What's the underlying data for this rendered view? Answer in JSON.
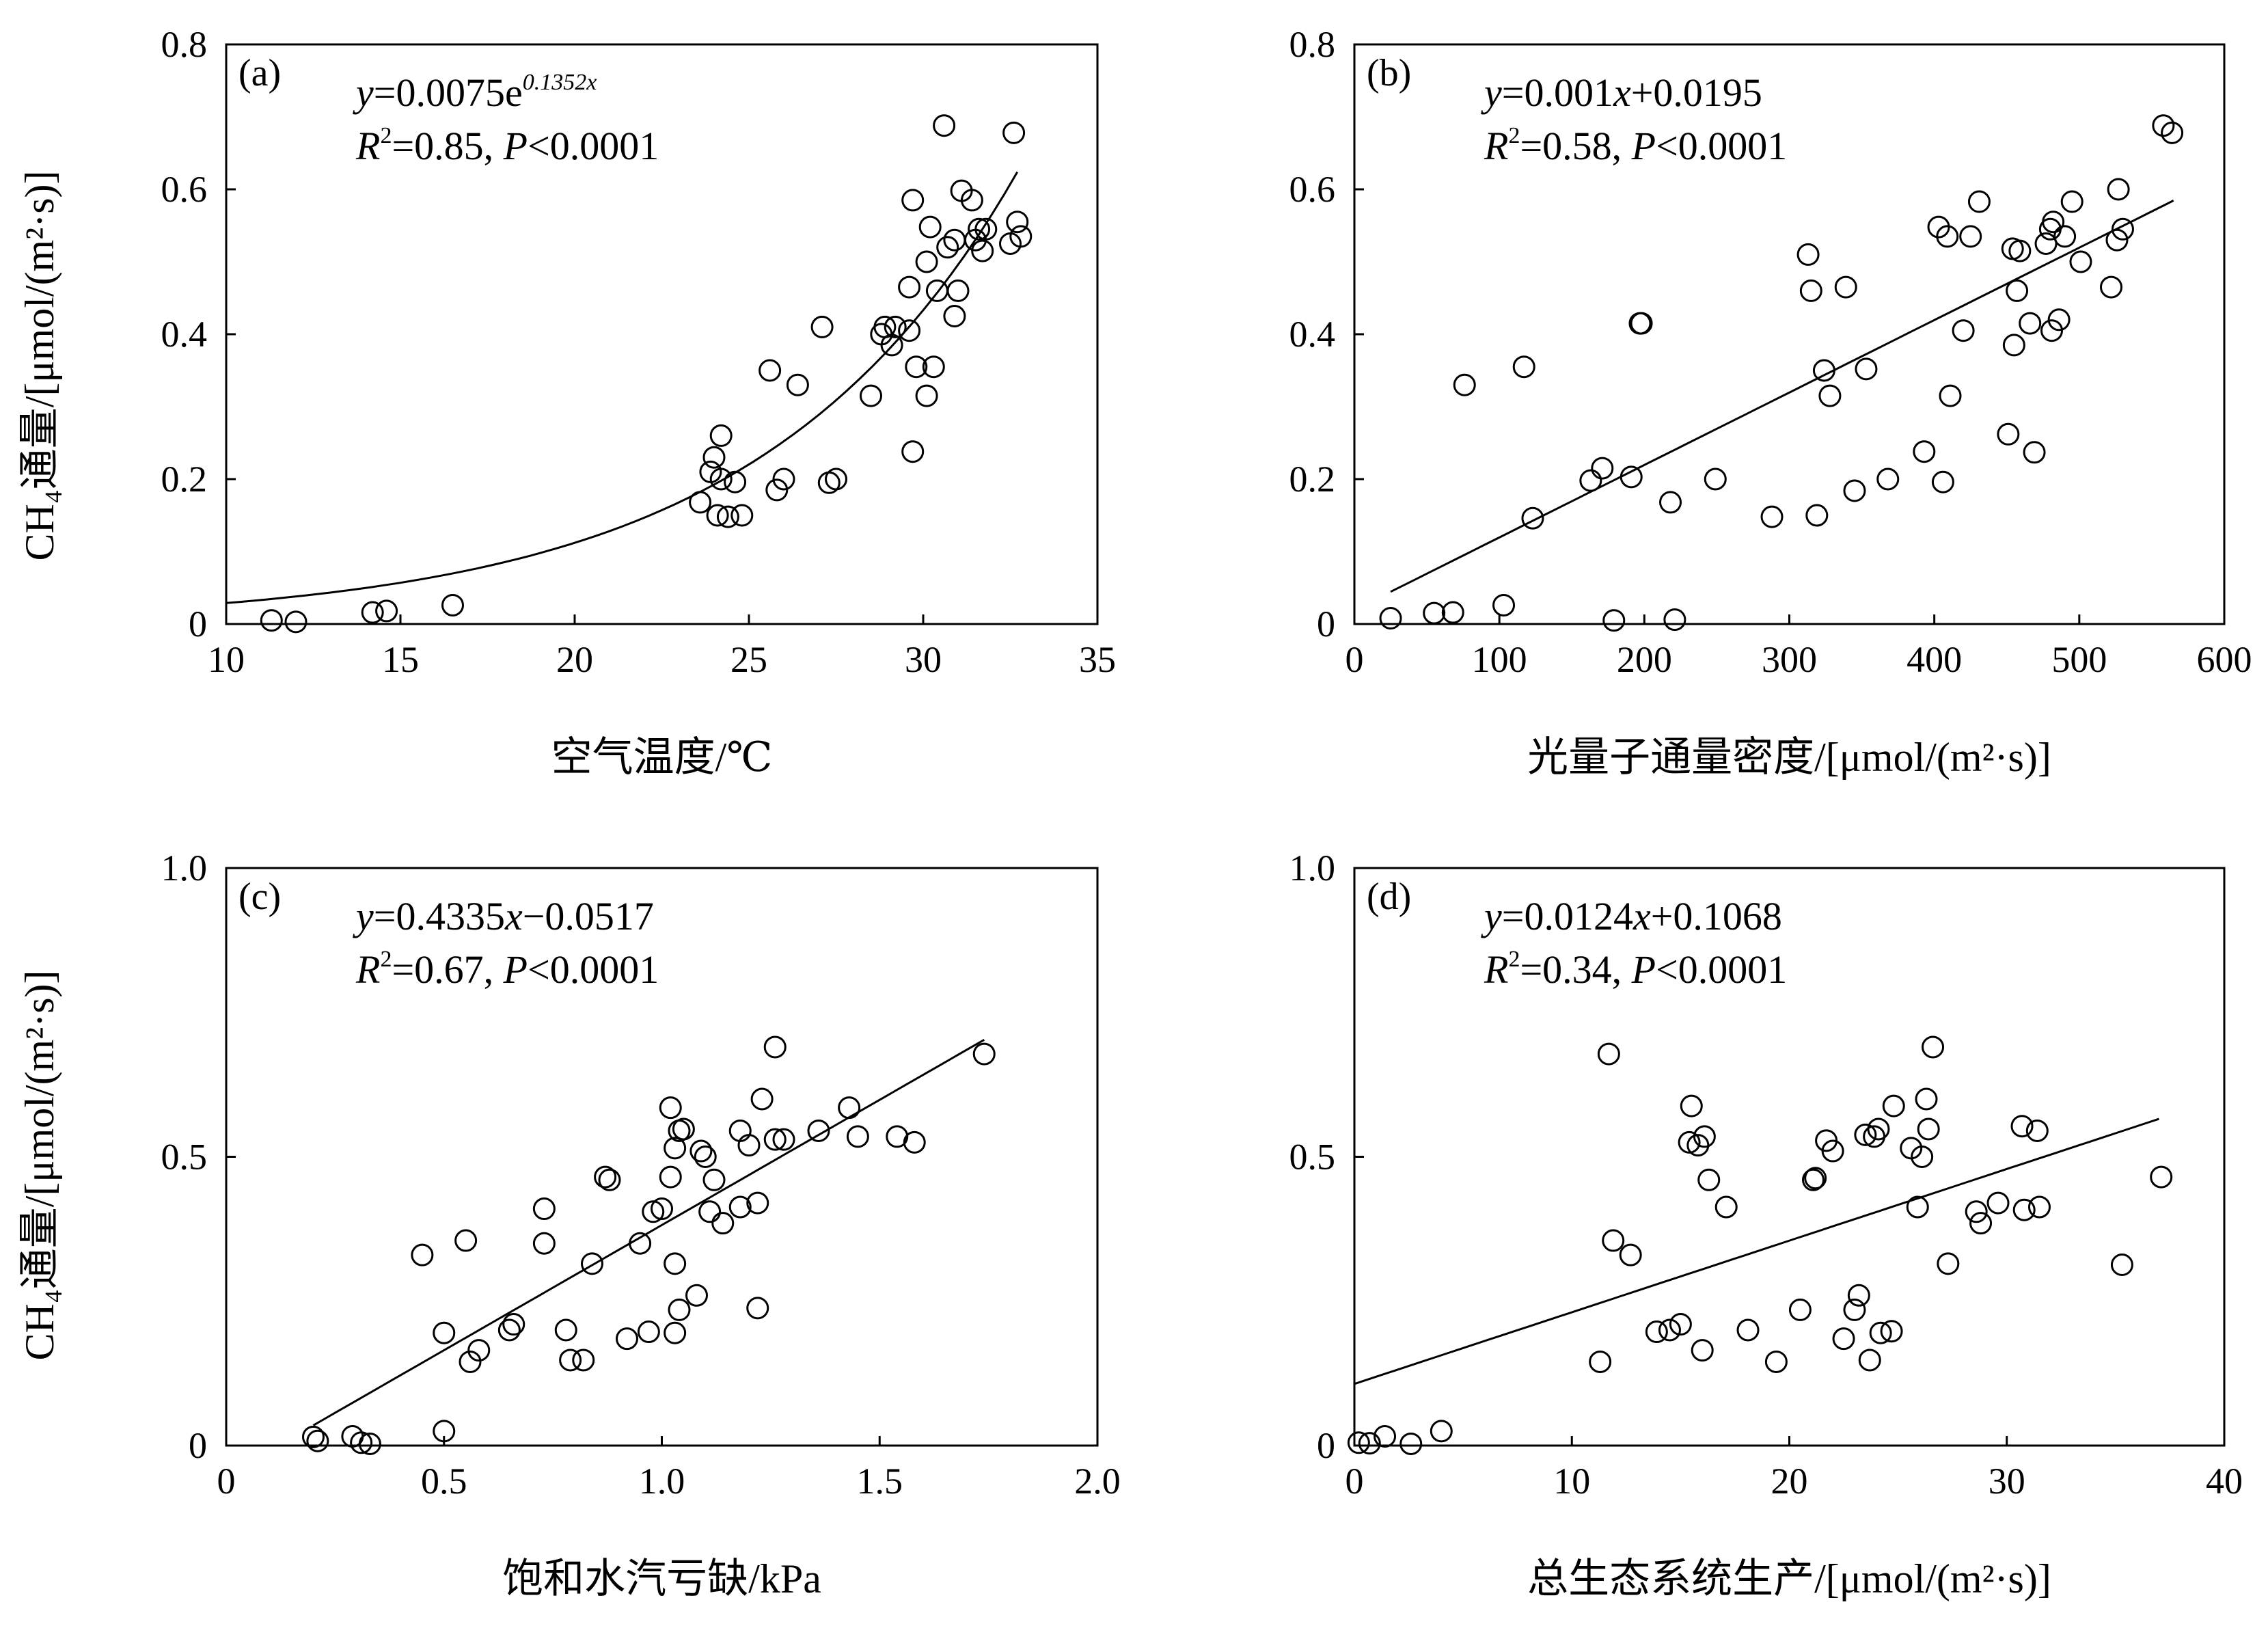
{
  "chart_data": [
    {
      "type": "scatter",
      "panel": "(a)",
      "equation": {
        "lhs": "y",
        "text": "=0.0075e",
        "exponent": "0.1352x"
      },
      "stats": {
        "r2_label": "R",
        "r2_value": "=0.85, ",
        "p_label": "P",
        "p_value": "<0.0001"
      },
      "xlabel": "空气温度/℃",
      "ylabel": "CH₄通量/[μmol/(m²·s)]",
      "xlim": [
        10,
        35
      ],
      "ylim": [
        0,
        0.8
      ],
      "xticks": [
        10,
        15,
        20,
        25,
        30,
        35
      ],
      "yticks": [
        0,
        0.2,
        0.4,
        0.6,
        0.8
      ],
      "xtick_labels": [
        "10",
        "15",
        "20",
        "25",
        "30",
        "35"
      ],
      "ytick_labels": [
        "0",
        "0.2",
        "0.4",
        "0.6",
        "0.8"
      ],
      "fit": {
        "kind": "exp",
        "a": 0.0075,
        "b": 0.1352,
        "x_range": [
          10,
          32.7
        ]
      },
      "points": [
        [
          11.3,
          0.005
        ],
        [
          12.0,
          0.003
        ],
        [
          14.2,
          0.016
        ],
        [
          14.6,
          0.018
        ],
        [
          16.5,
          0.026
        ],
        [
          23.6,
          0.168
        ],
        [
          23.9,
          0.21
        ],
        [
          24.0,
          0.23
        ],
        [
          24.1,
          0.15
        ],
        [
          24.2,
          0.2
        ],
        [
          24.2,
          0.26
        ],
        [
          24.4,
          0.148
        ],
        [
          24.6,
          0.196
        ],
        [
          24.8,
          0.15
        ],
        [
          25.6,
          0.35
        ],
        [
          25.8,
          0.185
        ],
        [
          26.0,
          0.2
        ],
        [
          26.4,
          0.33
        ],
        [
          27.1,
          0.41
        ],
        [
          27.3,
          0.195
        ],
        [
          27.5,
          0.2
        ],
        [
          28.5,
          0.315
        ],
        [
          28.8,
          0.4
        ],
        [
          28.9,
          0.41
        ],
        [
          29.1,
          0.385
        ],
        [
          29.2,
          0.41
        ],
        [
          29.6,
          0.465
        ],
        [
          29.6,
          0.405
        ],
        [
          29.7,
          0.238
        ],
        [
          29.7,
          0.585
        ],
        [
          29.8,
          0.355
        ],
        [
          30.1,
          0.5
        ],
        [
          30.1,
          0.315
        ],
        [
          30.2,
          0.548
        ],
        [
          30.3,
          0.355
        ],
        [
          30.4,
          0.46
        ],
        [
          30.6,
          0.688
        ],
        [
          30.7,
          0.52
        ],
        [
          30.9,
          0.53
        ],
        [
          30.9,
          0.425
        ],
        [
          31.0,
          0.46
        ],
        [
          31.1,
          0.598
        ],
        [
          31.4,
          0.585
        ],
        [
          31.5,
          0.53
        ],
        [
          31.6,
          0.545
        ],
        [
          31.7,
          0.515
        ],
        [
          31.8,
          0.545
        ],
        [
          32.5,
          0.525
        ],
        [
          32.6,
          0.678
        ],
        [
          32.7,
          0.555
        ],
        [
          32.8,
          0.535
        ]
      ]
    },
    {
      "type": "scatter",
      "panel": "(b)",
      "equation": {
        "lhs": "y",
        "text": "=0.001",
        "var": "x",
        "tail": "+0.0195"
      },
      "stats": {
        "r2_label": "R",
        "r2_value": "=0.58, ",
        "p_label": "P",
        "p_value": "<0.0001"
      },
      "xlabel": "光量子通量密度/[μmol/(m²·s)]",
      "xlim": [
        0,
        600
      ],
      "ylim": [
        0,
        0.8
      ],
      "xticks": [
        0,
        100,
        200,
        300,
        400,
        500,
        600
      ],
      "yticks": [
        0,
        0.2,
        0.4,
        0.6,
        0.8
      ],
      "xtick_labels": [
        "0",
        "100",
        "200",
        "300",
        "400",
        "500",
        "600"
      ],
      "ytick_labels": [
        "0",
        "0.2",
        "0.4",
        "0.6",
        "0.8"
      ],
      "fit": {
        "kind": "linear",
        "m": 0.001,
        "c": 0.0195,
        "x_range": [
          25,
          565
        ]
      },
      "points": [
        [
          25,
          0.008
        ],
        [
          55,
          0.015
        ],
        [
          68,
          0.016
        ],
        [
          76,
          0.33
        ],
        [
          103,
          0.026
        ],
        [
          117,
          0.355
        ],
        [
          123,
          0.146
        ],
        [
          163,
          0.198
        ],
        [
          171,
          0.215
        ],
        [
          179,
          0.005
        ],
        [
          191,
          0.203
        ],
        [
          197,
          0.415
        ],
        [
          198,
          0.415
        ],
        [
          218,
          0.168
        ],
        [
          221,
          0.006
        ],
        [
          249,
          0.2
        ],
        [
          288,
          0.148
        ],
        [
          313,
          0.51
        ],
        [
          315,
          0.46
        ],
        [
          319,
          0.15
        ],
        [
          324,
          0.35
        ],
        [
          328,
          0.315
        ],
        [
          339,
          0.465
        ],
        [
          345,
          0.184
        ],
        [
          353,
          0.352
        ],
        [
          368,
          0.2
        ],
        [
          393,
          0.238
        ],
        [
          403,
          0.548
        ],
        [
          406,
          0.196
        ],
        [
          409,
          0.535
        ],
        [
          411,
          0.315
        ],
        [
          420,
          0.405
        ],
        [
          425,
          0.535
        ],
        [
          431,
          0.583
        ],
        [
          451,
          0.262
        ],
        [
          454,
          0.518
        ],
        [
          455,
          0.385
        ],
        [
          457,
          0.46
        ],
        [
          459,
          0.515
        ],
        [
          466,
          0.415
        ],
        [
          469,
          0.237
        ],
        [
          477,
          0.525
        ],
        [
          480,
          0.545
        ],
        [
          481,
          0.405
        ],
        [
          482,
          0.555
        ],
        [
          486,
          0.42
        ],
        [
          490,
          0.535
        ],
        [
          495,
          0.583
        ],
        [
          501,
          0.5
        ],
        [
          522,
          0.465
        ],
        [
          526,
          0.53
        ],
        [
          527,
          0.6
        ],
        [
          530,
          0.545
        ],
        [
          558,
          0.688
        ],
        [
          564,
          0.678
        ]
      ]
    },
    {
      "type": "scatter",
      "panel": "(c)",
      "equation": {
        "lhs": "y",
        "text": "=0.4335",
        "var": "x",
        "tail": "−0.0517"
      },
      "stats": {
        "r2_label": "R",
        "r2_value": "=0.67, ",
        "p_label": "P",
        "p_value": "<0.0001"
      },
      "xlabel": "饱和水汽亏缺/kPa",
      "ylabel": "CH₄通量/[μmol/(m²·s)]",
      "xlim": [
        0,
        2.0
      ],
      "ylim": [
        0,
        1.0
      ],
      "xticks": [
        0,
        0.5,
        1.0,
        1.5,
        2.0
      ],
      "yticks": [
        0,
        0.5,
        1.0
      ],
      "xtick_labels": [
        "0",
        "0.5",
        "1.0",
        "1.5",
        "2.0"
      ],
      "ytick_labels": [
        "0",
        "0.5",
        "1.0"
      ],
      "fit": {
        "kind": "linear",
        "m": 0.4335,
        "c": -0.0517,
        "x_range": [
          0.2,
          1.74
        ]
      },
      "points": [
        [
          0.2,
          0.015
        ],
        [
          0.21,
          0.008
        ],
        [
          0.29,
          0.016
        ],
        [
          0.31,
          0.005
        ],
        [
          0.33,
          0.003
        ],
        [
          0.45,
          0.33
        ],
        [
          0.5,
          0.025
        ],
        [
          0.5,
          0.195
        ],
        [
          0.55,
          0.355
        ],
        [
          0.56,
          0.145
        ],
        [
          0.58,
          0.165
        ],
        [
          0.65,
          0.2
        ],
        [
          0.66,
          0.21
        ],
        [
          0.73,
          0.41
        ],
        [
          0.73,
          0.35
        ],
        [
          0.78,
          0.2
        ],
        [
          0.79,
          0.148
        ],
        [
          0.82,
          0.148
        ],
        [
          0.84,
          0.315
        ],
        [
          0.87,
          0.465
        ],
        [
          0.88,
          0.46
        ],
        [
          0.92,
          0.185
        ],
        [
          0.95,
          0.35
        ],
        [
          0.97,
          0.197
        ],
        [
          0.98,
          0.405
        ],
        [
          1.0,
          0.41
        ],
        [
          1.02,
          0.465
        ],
        [
          1.02,
          0.585
        ],
        [
          1.03,
          0.515
        ],
        [
          1.03,
          0.315
        ],
        [
          1.03,
          0.195
        ],
        [
          1.04,
          0.545
        ],
        [
          1.04,
          0.235
        ],
        [
          1.05,
          0.548
        ],
        [
          1.08,
          0.26
        ],
        [
          1.09,
          0.51
        ],
        [
          1.1,
          0.5
        ],
        [
          1.11,
          0.405
        ],
        [
          1.12,
          0.46
        ],
        [
          1.14,
          0.385
        ],
        [
          1.18,
          0.413
        ],
        [
          1.18,
          0.545
        ],
        [
          1.2,
          0.52
        ],
        [
          1.22,
          0.42
        ],
        [
          1.22,
          0.238
        ],
        [
          1.23,
          0.6
        ],
        [
          1.26,
          0.53
        ],
        [
          1.26,
          0.69
        ],
        [
          1.28,
          0.53
        ],
        [
          1.36,
          0.545
        ],
        [
          1.43,
          0.585
        ],
        [
          1.45,
          0.535
        ],
        [
          1.54,
          0.535
        ],
        [
          1.58,
          0.525
        ],
        [
          1.74,
          0.678
        ]
      ]
    },
    {
      "type": "scatter",
      "panel": "(d)",
      "equation": {
        "lhs": "y",
        "text": "=0.0124",
        "var": "x",
        "tail": "+0.1068"
      },
      "stats": {
        "r2_label": "R",
        "r2_value": "=0.34, ",
        "p_label": "P",
        "p_value": "<0.0001"
      },
      "xlabel": "总生态系统生产/[μmol/(m²·s)]",
      "xlim": [
        0,
        40
      ],
      "ylim": [
        0,
        1.0
      ],
      "xticks": [
        0,
        10,
        20,
        30,
        40
      ],
      "yticks": [
        0,
        0.5,
        1.0
      ],
      "xtick_labels": [
        "0",
        "10",
        "20",
        "30",
        "40"
      ],
      "ytick_labels": [
        "0",
        "0.5",
        "1.0"
      ],
      "fit": {
        "kind": "linear",
        "m": 0.0124,
        "c": 0.1068,
        "x_range": [
          0,
          37
        ]
      },
      "points": [
        [
          0.2,
          0.005
        ],
        [
          0.7,
          0.004
        ],
        [
          1.4,
          0.016
        ],
        [
          2.6,
          0.003
        ],
        [
          4.0,
          0.025
        ],
        [
          11.3,
          0.145
        ],
        [
          11.7,
          0.678
        ],
        [
          11.9,
          0.355
        ],
        [
          12.7,
          0.33
        ],
        [
          13.9,
          0.197
        ],
        [
          14.5,
          0.2
        ],
        [
          15.0,
          0.21
        ],
        [
          15.4,
          0.525
        ],
        [
          15.5,
          0.588
        ],
        [
          15.8,
          0.52
        ],
        [
          16.0,
          0.165
        ],
        [
          16.1,
          0.535
        ],
        [
          16.3,
          0.46
        ],
        [
          17.1,
          0.413
        ],
        [
          18.1,
          0.2
        ],
        [
          19.4,
          0.145
        ],
        [
          20.5,
          0.235
        ],
        [
          21.1,
          0.46
        ],
        [
          21.2,
          0.463
        ],
        [
          21.7,
          0.528
        ],
        [
          22.0,
          0.51
        ],
        [
          22.5,
          0.185
        ],
        [
          23.0,
          0.235
        ],
        [
          23.2,
          0.26
        ],
        [
          23.5,
          0.538
        ],
        [
          23.7,
          0.148
        ],
        [
          23.9,
          0.535
        ],
        [
          24.1,
          0.548
        ],
        [
          24.2,
          0.195
        ],
        [
          24.7,
          0.198
        ],
        [
          24.8,
          0.588
        ],
        [
          25.6,
          0.515
        ],
        [
          25.9,
          0.413
        ],
        [
          26.1,
          0.5
        ],
        [
          26.3,
          0.6
        ],
        [
          26.4,
          0.548
        ],
        [
          26.6,
          0.69
        ],
        [
          27.3,
          0.315
        ],
        [
          28.6,
          0.405
        ],
        [
          28.8,
          0.385
        ],
        [
          29.6,
          0.42
        ],
        [
          30.7,
          0.553
        ],
        [
          30.8,
          0.408
        ],
        [
          31.4,
          0.545
        ],
        [
          31.5,
          0.413
        ],
        [
          35.3,
          0.313
        ],
        [
          37.1,
          0.465
        ]
      ]
    }
  ]
}
